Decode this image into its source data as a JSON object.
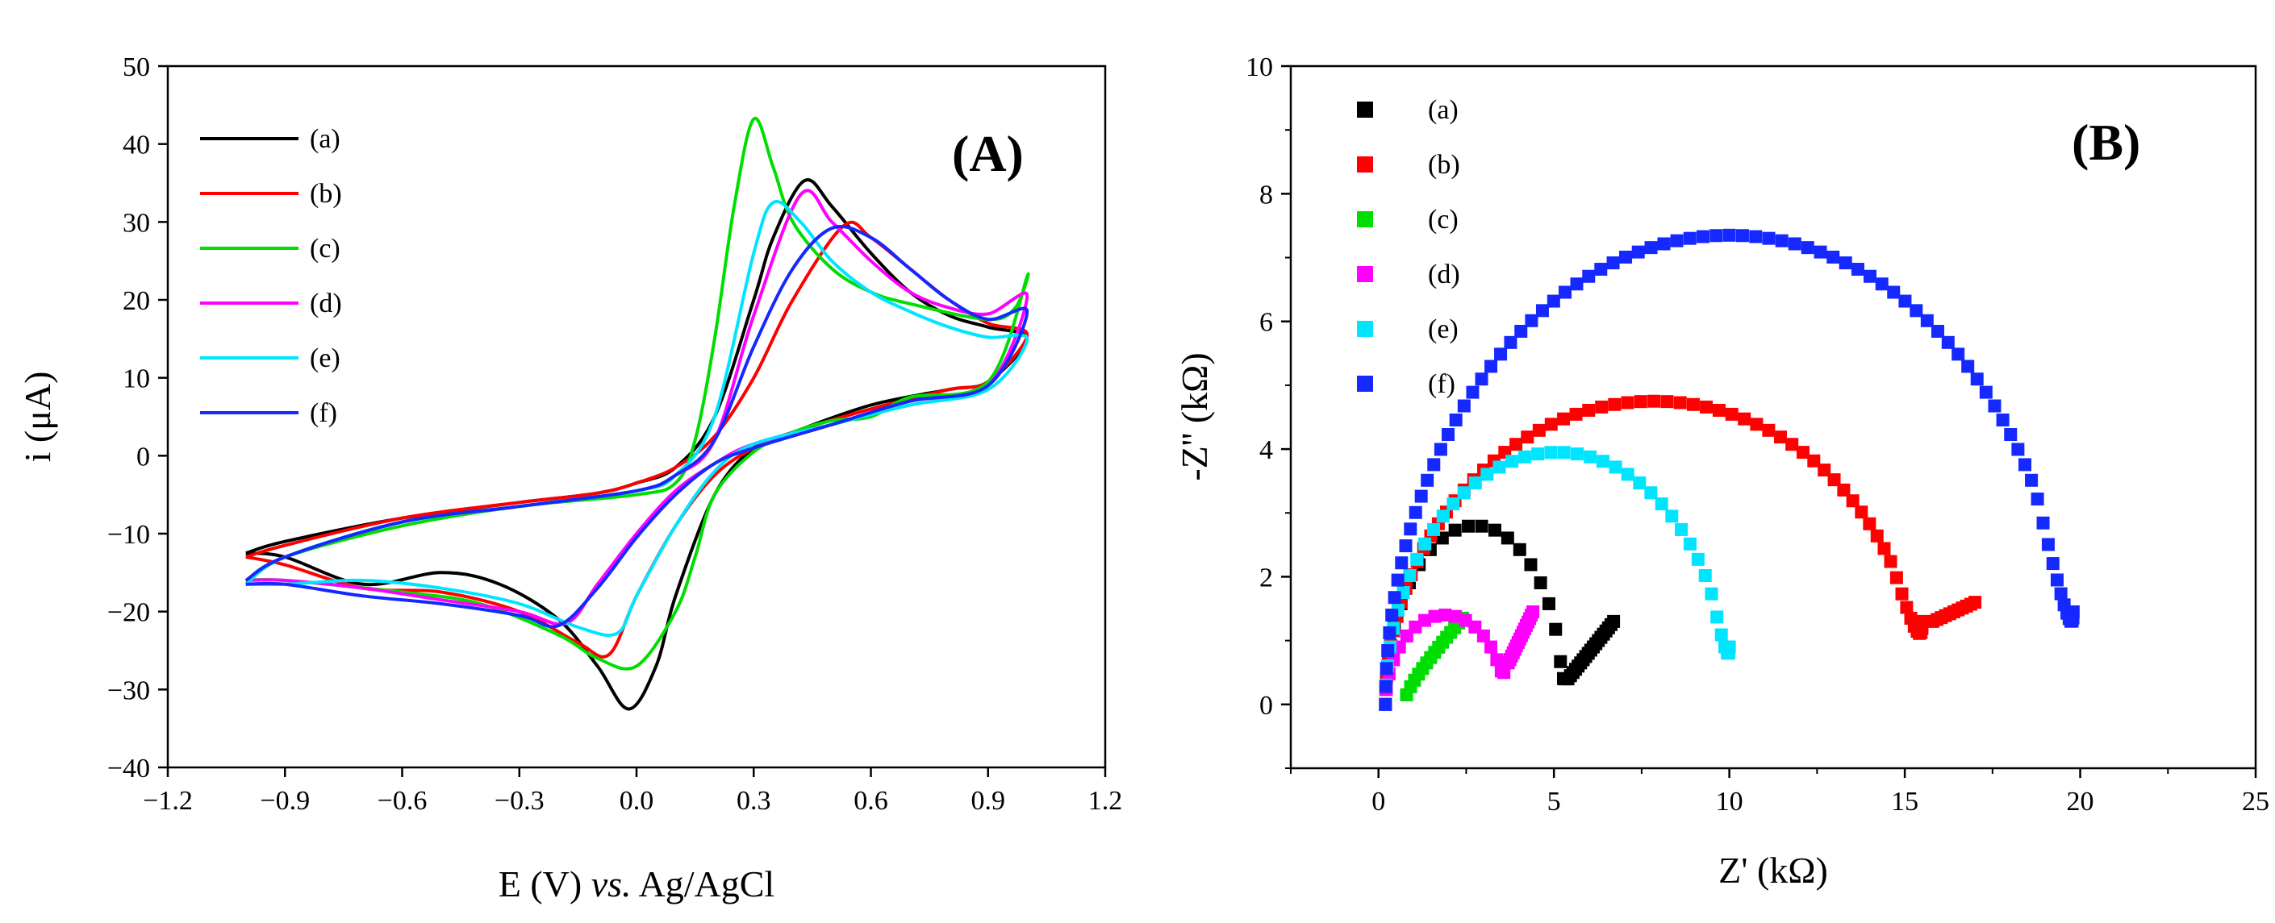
{
  "panels": [
    {
      "id": "A",
      "label": "(A)",
      "type": "line",
      "xlabel_main": "E (V) ",
      "xlabel_italic": "vs.",
      "xlabel_tail": " Ag/AgCl",
      "ylabel": "i (μA)",
      "x_ticks": [
        "−1.2",
        "−0.9",
        "−0.6",
        "−0.3",
        "0.0",
        "0.3",
        "0.6",
        "0.9",
        "1.2"
      ],
      "y_ticks": [
        "−40",
        "−30",
        "−20",
        "−10",
        "0",
        "10",
        "20",
        "30",
        "40",
        "50"
      ]
    },
    {
      "id": "B",
      "label": "(B)",
      "type": "scatter",
      "xlabel": "Z' (kΩ)",
      "ylabel": "-Z'' (kΩ)",
      "x_ticks": [
        "0",
        "5",
        "10",
        "15",
        "20",
        "25"
      ],
      "y_ticks": [
        "0",
        "2",
        "4",
        "6",
        "8",
        "10"
      ]
    }
  ],
  "chart_data": [
    {
      "type": "line",
      "xlim": [
        -1.2,
        1.2
      ],
      "ylim": [
        -40,
        50
      ],
      "legend_position": "top-left",
      "series": [
        {
          "name": "(a)",
          "color": "#000000",
          "oxidation_peak": [
            0.43,
            35.3
          ],
          "reduction_peak": [
            -0.02,
            -32.5
          ],
          "forward": [
            [
              -1.0,
              -12.5
            ],
            [
              -0.9,
              -11
            ],
            [
              -0.6,
              -8
            ],
            [
              -0.3,
              -6
            ],
            [
              -0.1,
              -4.8
            ],
            [
              0.0,
              -3.5
            ],
            [
              0.1,
              -1.5
            ],
            [
              0.2,
              5
            ],
            [
              0.3,
              20
            ],
            [
              0.35,
              28
            ],
            [
              0.43,
              35.3
            ],
            [
              0.5,
              32
            ],
            [
              0.6,
              26
            ],
            [
              0.7,
              21
            ],
            [
              0.8,
              18
            ],
            [
              0.9,
              16.5
            ],
            [
              1.0,
              15
            ]
          ],
          "reverse": [
            [
              1.0,
              10
            ],
            [
              0.9,
              9.5
            ],
            [
              0.8,
              8.5
            ],
            [
              0.6,
              6.5
            ],
            [
              0.4,
              3
            ],
            [
              0.3,
              1
            ],
            [
              0.2,
              -5
            ],
            [
              0.1,
              -18
            ],
            [
              0.05,
              -27
            ],
            [
              -0.02,
              -32.5
            ],
            [
              -0.1,
              -27
            ],
            [
              -0.2,
              -21
            ],
            [
              -0.35,
              -16.5
            ],
            [
              -0.5,
              -15
            ],
            [
              -0.7,
              -16.5
            ],
            [
              -0.9,
              -13
            ],
            [
              -1.0,
              -12.5
            ]
          ]
        },
        {
          "name": "(b)",
          "color": "#ff0000",
          "oxidation_peak": [
            0.53,
            29.5
          ],
          "reduction_peak": [
            -0.07,
            -25.5
          ],
          "forward": [
            [
              -1.0,
              -13
            ],
            [
              -0.9,
              -11.5
            ],
            [
              -0.6,
              -8
            ],
            [
              -0.3,
              -6
            ],
            [
              -0.1,
              -4.8
            ],
            [
              0.0,
              -3.5
            ],
            [
              0.1,
              -1.5
            ],
            [
              0.2,
              2.5
            ],
            [
              0.3,
              10
            ],
            [
              0.4,
              20
            ],
            [
              0.53,
              29.5
            ],
            [
              0.6,
              28
            ],
            [
              0.7,
              24
            ],
            [
              0.8,
              20
            ],
            [
              0.9,
              17
            ],
            [
              1.0,
              15.5
            ]
          ],
          "reverse": [
            [
              1.0,
              11
            ],
            [
              0.9,
              9.5
            ],
            [
              0.8,
              8.5
            ],
            [
              0.6,
              6
            ],
            [
              0.4,
              3
            ],
            [
              0.3,
              1
            ],
            [
              0.2,
              -2.5
            ],
            [
              0.1,
              -9
            ],
            [
              0.0,
              -18
            ],
            [
              -0.07,
              -25.5
            ],
            [
              -0.15,
              -24
            ],
            [
              -0.3,
              -20
            ],
            [
              -0.5,
              -17.5
            ],
            [
              -0.7,
              -17
            ],
            [
              -0.9,
              -14
            ],
            [
              -1.0,
              -13
            ]
          ]
        },
        {
          "name": "(c)",
          "color": "#00dd00",
          "oxidation_peak": [
            0.3,
            43.2
          ],
          "reduction_peak": [
            -0.02,
            -27.2
          ],
          "forward": [
            [
              -1.0,
              -16
            ],
            [
              -0.9,
              -13
            ],
            [
              -0.6,
              -9
            ],
            [
              -0.3,
              -6.5
            ],
            [
              0.0,
              -5
            ],
            [
              0.1,
              -3.5
            ],
            [
              0.15,
              2
            ],
            [
              0.2,
              15
            ],
            [
              0.25,
              32
            ],
            [
              0.3,
              43.2
            ],
            [
              0.35,
              37
            ],
            [
              0.4,
              30
            ],
            [
              0.5,
              24
            ],
            [
              0.6,
              21
            ],
            [
              0.7,
              19.5
            ],
            [
              0.9,
              17.5
            ],
            [
              0.97,
              19
            ],
            [
              1.0,
              23
            ]
          ],
          "reverse": [
            [
              1.0,
              11
            ],
            [
              0.9,
              9.5
            ],
            [
              0.7,
              7.5
            ],
            [
              0.6,
              5
            ],
            [
              0.5,
              4.5
            ],
            [
              0.4,
              3
            ],
            [
              0.3,
              0.5
            ],
            [
              0.2,
              -5
            ],
            [
              0.15,
              -13
            ],
            [
              0.1,
              -20
            ],
            [
              0.0,
              -27
            ],
            [
              -0.1,
              -26
            ],
            [
              -0.2,
              -23
            ],
            [
              -0.4,
              -19
            ],
            [
              -0.6,
              -17.5
            ],
            [
              -0.9,
              -16
            ],
            [
              -1.0,
              -16
            ]
          ]
        },
        {
          "name": "(d)",
          "color": "#ff00ff",
          "oxidation_peak": [
            0.42,
            33.5
          ],
          "reduction_peak": [
            -0.18,
            -21.5
          ],
          "forward": [
            [
              -1.0,
              -16
            ],
            [
              -0.9,
              -13
            ],
            [
              -0.6,
              -8.5
            ],
            [
              -0.3,
              -6.5
            ],
            [
              0.0,
              -4.5
            ],
            [
              0.1,
              -2.5
            ],
            [
              0.2,
              2
            ],
            [
              0.3,
              18
            ],
            [
              0.42,
              33.5
            ],
            [
              0.5,
              30
            ],
            [
              0.6,
              25
            ],
            [
              0.7,
              21
            ],
            [
              0.8,
              19
            ],
            [
              0.9,
              18.2
            ],
            [
              1.0,
              20.5
            ]
          ],
          "reverse": [
            [
              1.0,
              11
            ],
            [
              0.9,
              9
            ],
            [
              0.7,
              7
            ],
            [
              0.5,
              4
            ],
            [
              0.3,
              1.5
            ],
            [
              0.2,
              -1
            ],
            [
              0.1,
              -4.5
            ],
            [
              0.0,
              -10
            ],
            [
              -0.1,
              -16.5
            ],
            [
              -0.18,
              -21.5
            ],
            [
              -0.3,
              -20
            ],
            [
              -0.5,
              -18.5
            ],
            [
              -0.7,
              -17
            ],
            [
              -0.9,
              -16
            ],
            [
              -1.0,
              -16
            ]
          ]
        },
        {
          "name": "(e)",
          "color": "#00e5ff",
          "oxidation_peak": [
            0.35,
            32.5
          ],
          "reduction_peak": [
            -0.05,
            -22.8
          ],
          "forward": [
            [
              -1.0,
              -16.5
            ],
            [
              -0.9,
              -13
            ],
            [
              -0.6,
              -8.5
            ],
            [
              -0.3,
              -6.5
            ],
            [
              0.0,
              -4.5
            ],
            [
              0.1,
              -2.5
            ],
            [
              0.2,
              5
            ],
            [
              0.3,
              26
            ],
            [
              0.35,
              32.5
            ],
            [
              0.42,
              30
            ],
            [
              0.5,
              25
            ],
            [
              0.6,
              21
            ],
            [
              0.7,
              18.5
            ],
            [
              0.8,
              16.5
            ],
            [
              0.9,
              15.2
            ],
            [
              1.0,
              15
            ]
          ],
          "reverse": [
            [
              1.0,
              10
            ],
            [
              0.9,
              8.5
            ],
            [
              0.7,
              6.5
            ],
            [
              0.5,
              4
            ],
            [
              0.3,
              1.5
            ],
            [
              0.2,
              -2
            ],
            [
              0.1,
              -9
            ],
            [
              0.0,
              -18
            ],
            [
              -0.05,
              -22.8
            ],
            [
              -0.15,
              -22
            ],
            [
              -0.3,
              -19
            ],
            [
              -0.5,
              -17
            ],
            [
              -0.7,
              -16
            ],
            [
              -0.9,
              -16.5
            ],
            [
              -1.0,
              -16.5
            ]
          ]
        },
        {
          "name": "(f)",
          "color": "#1428ff",
          "oxidation_peak": [
            0.5,
            29.2
          ],
          "reduction_peak": [
            -0.2,
            -21.8
          ],
          "forward": [
            [
              -1.0,
              -16
            ],
            [
              -0.9,
              -13
            ],
            [
              -0.6,
              -8.5
            ],
            [
              -0.3,
              -6.5
            ],
            [
              0.0,
              -4.5
            ],
            [
              0.1,
              -2.5
            ],
            [
              0.2,
              2
            ],
            [
              0.3,
              14
            ],
            [
              0.4,
              24
            ],
            [
              0.5,
              29.2
            ],
            [
              0.6,
              28
            ],
            [
              0.7,
              24
            ],
            [
              0.8,
              20
            ],
            [
              0.9,
              17.5
            ],
            [
              1.0,
              18.5
            ]
          ],
          "reverse": [
            [
              1.0,
              12
            ],
            [
              0.9,
              9
            ],
            [
              0.7,
              7
            ],
            [
              0.5,
              4
            ],
            [
              0.3,
              1
            ],
            [
              0.2,
              -1
            ],
            [
              0.1,
              -5
            ],
            [
              0.0,
              -10.5
            ],
            [
              -0.1,
              -17
            ],
            [
              -0.2,
              -21.8
            ],
            [
              -0.3,
              -20.5
            ],
            [
              -0.5,
              -19
            ],
            [
              -0.7,
              -18
            ],
            [
              -0.9,
              -16.5
            ],
            [
              -1.0,
              -16.5
            ]
          ]
        }
      ]
    },
    {
      "type": "scatter",
      "xlim": [
        -2.5,
        25
      ],
      "ylim": [
        -1,
        10
      ],
      "legend_position": "top-left",
      "series": [
        {
          "name": "(a)",
          "color": "#000000",
          "x_start": 0.2,
          "semicircle_end": 5.3,
          "apex": 2.8,
          "min_point": [
            5.4,
            0.4
          ],
          "tail_end": [
            6.7,
            1.3
          ]
        },
        {
          "name": "(b)",
          "color": "#ff0000",
          "x_start": 0.2,
          "semicircle_end": 15.5,
          "apex": 4.75,
          "min_point": [
            15.8,
            1.3
          ],
          "tail_end": [
            17.0,
            1.6
          ]
        },
        {
          "name": "(c)",
          "color": "#00dd00",
          "x_start": 0.7,
          "semicircle_end": 0.8,
          "apex": 0,
          "min_point": [
            0.8,
            0.15
          ],
          "tail_end": [
            2.4,
            1.35
          ]
        },
        {
          "name": "(d)",
          "color": "#ff00ff",
          "x_start": 0.2,
          "semicircle_end": 3.6,
          "apex": 1.4,
          "min_point": [
            3.7,
            0.65
          ],
          "tail_end": [
            4.4,
            1.45
          ]
        },
        {
          "name": "(e)",
          "color": "#00e5ff",
          "x_start": 0.2,
          "semicircle_end": 10.0,
          "apex": 3.95,
          "min_point": [
            10.0,
            0.9
          ],
          "tail_end": [
            10.0,
            0.9
          ]
        },
        {
          "name": "(f)",
          "color": "#1428ff",
          "x_start": 0.2,
          "semicircle_end": 19.8,
          "apex": 7.35,
          "min_point": [
            19.8,
            1.45
          ],
          "tail_end": [
            19.8,
            1.45
          ]
        }
      ]
    }
  ]
}
